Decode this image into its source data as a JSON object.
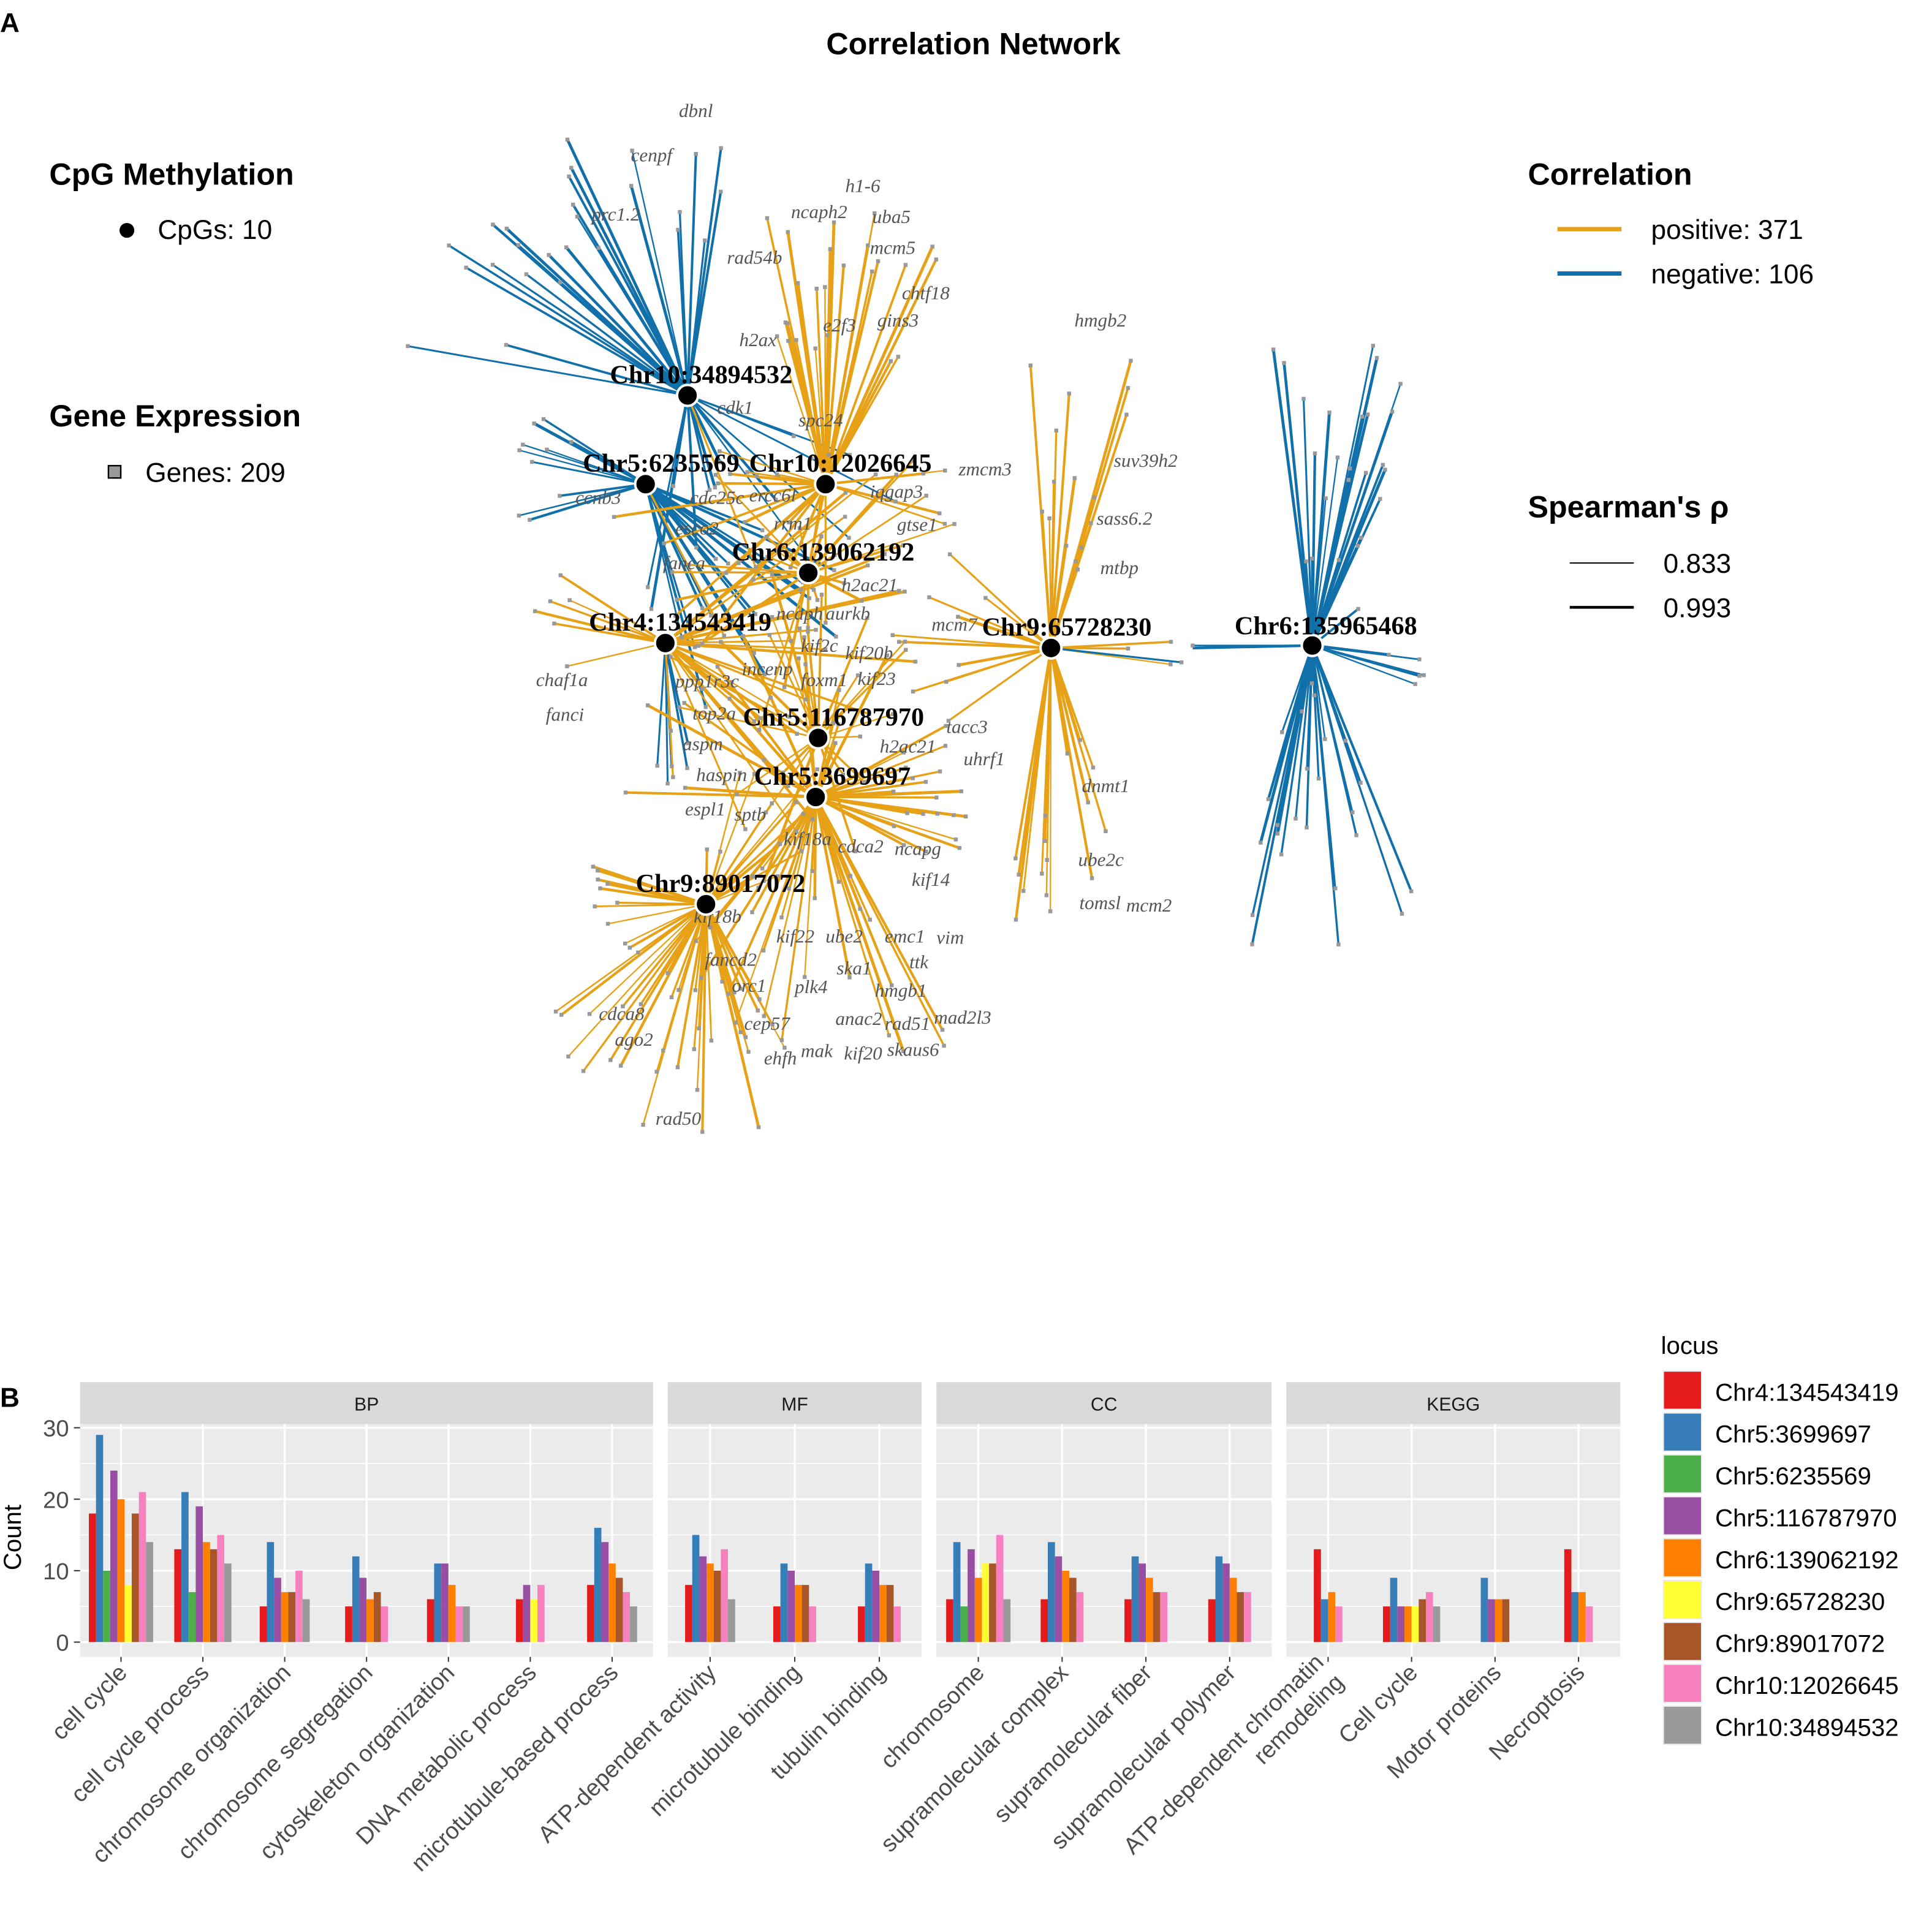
{
  "panel_a": {
    "panel_label": "A",
    "title": "Correlation Network",
    "legend_cpg": {
      "title": "CpG Methylation",
      "item": "CpGs: 10"
    },
    "legend_gene": {
      "title": "Gene Expression",
      "item": "Genes: 209"
    },
    "legend_correlation": {
      "title": "Correlation",
      "positive": "positive: 371",
      "negative": "negative: 106"
    },
    "legend_spearman": {
      "title": "Spearman's ρ",
      "low": "0.833",
      "high": "0.993"
    },
    "colors": {
      "positive": "#E6A117",
      "negative": "#1170AA",
      "cpg_node": "#000000",
      "gene_node": "#999999"
    },
    "cpg_nodes": [
      "Chr10:34894532",
      "Chr5:6235569",
      "Chr10:12026645",
      "Chr6:139062192",
      "Chr4:134543419",
      "Chr5:116787970",
      "Chr5:3699697",
      "Chr9:89017072",
      "Chr9:65728230",
      "Chr6:135965468"
    ],
    "gene_labels": [
      "dbnl",
      "cenpf",
      "prc1.2",
      "ncaph2",
      "h1-6",
      "uba5",
      "mcm5",
      "rad54b",
      "chtf18",
      "e2f3",
      "gins3",
      "h2ax",
      "cdk1",
      "spc24",
      "ercc6l",
      "iqgap3",
      "zmcm3",
      "ccnb3",
      "cdc25c",
      "esco2",
      "rrm1",
      "gtse1",
      "fanca",
      "h2ac21",
      "ncaph",
      "aurkb",
      "mcm7",
      "kif20b",
      "incenp",
      "foxm1",
      "ppp1r3c",
      "top2a",
      "kif2c",
      "kif23",
      "chaf1a",
      "fanci",
      "aspm",
      "haspin",
      "tacc3",
      "uhrf1",
      "h2ac21",
      "espl1",
      "sptb",
      "kif18a",
      "cdca2",
      "ncapg",
      "kif14",
      "kif18b",
      "kif22",
      "ube2",
      "emc1",
      "vim",
      "fancd2",
      "orc1",
      "ska1",
      "ttk",
      "hmgb1",
      "plk4",
      "rad51",
      "mad2l3",
      "anac2",
      "cdca8",
      "ago2",
      "cep57",
      "ehfh",
      "mak",
      "kif20",
      "skaus6",
      "rad50",
      "hmgb2",
      "suv39h2",
      "sass6.2",
      "mtbp",
      "dnmt1",
      "ube2c",
      "tomsl",
      "mcm2"
    ]
  },
  "panel_b": {
    "panel_label": "B"
  },
  "chart_data": {
    "type": "bar",
    "ylabel": "Count",
    "xlabel": "",
    "ylim": [
      0,
      32
    ],
    "yticks": [
      0,
      10,
      20,
      30
    ],
    "grid": true,
    "legend_title": "locus",
    "legend_position": "right",
    "series_names": [
      "Chr4:134543419",
      "Chr5:3699697",
      "Chr5:6235569",
      "Chr5:116787970",
      "Chr6:139062192",
      "Chr9:65728230",
      "Chr9:89017072",
      "Chr10:12026645",
      "Chr10:34894532"
    ],
    "series_colors": [
      "#E41A1C",
      "#377EB8",
      "#4DAF4A",
      "#984EA3",
      "#FF7F00",
      "#FFFF33",
      "#A65628",
      "#F781BF",
      "#999999"
    ],
    "facets": [
      {
        "name": "BP",
        "categories": [
          {
            "label": "cell cycle",
            "values": [
              18,
              29,
              10,
              24,
              20,
              8,
              18,
              21,
              14
            ]
          },
          {
            "label": "cell cycle process",
            "values": [
              13,
              21,
              7,
              19,
              14,
              null,
              13,
              15,
              11
            ]
          },
          {
            "label": "chromosome organization",
            "values": [
              5,
              14,
              null,
              9,
              7,
              null,
              7,
              10,
              6
            ]
          },
          {
            "label": "chromosome segregation",
            "values": [
              5,
              12,
              null,
              9,
              6,
              null,
              7,
              5,
              null
            ]
          },
          {
            "label": "cytoskeleton organization",
            "values": [
              6,
              11,
              null,
              11,
              8,
              null,
              null,
              5,
              5
            ]
          },
          {
            "label": "DNA metabolic process",
            "values": [
              6,
              null,
              null,
              8,
              null,
              6,
              null,
              8,
              null
            ]
          },
          {
            "label": "microtubule-based process",
            "values": [
              8,
              16,
              null,
              14,
              11,
              null,
              9,
              7,
              5
            ]
          }
        ]
      },
      {
        "name": "MF",
        "categories": [
          {
            "label": "ATP-dependent activity",
            "values": [
              8,
              15,
              null,
              12,
              11,
              null,
              10,
              13,
              6
            ]
          },
          {
            "label": "microtubule binding",
            "values": [
              5,
              11,
              null,
              10,
              8,
              null,
              8,
              5,
              null
            ]
          },
          {
            "label": "tubulin binding",
            "values": [
              5,
              11,
              null,
              10,
              8,
              null,
              8,
              5,
              null
            ]
          }
        ]
      },
      {
        "name": "CC",
        "categories": [
          {
            "label": "chromosome",
            "values": [
              6,
              14,
              5,
              13,
              9,
              11,
              11,
              15,
              6
            ]
          },
          {
            "label": "supramolecular complex",
            "values": [
              6,
              14,
              null,
              12,
              10,
              null,
              9,
              7,
              null
            ]
          },
          {
            "label": "supramolecular fiber",
            "values": [
              6,
              12,
              null,
              11,
              9,
              null,
              7,
              7,
              null
            ]
          },
          {
            "label": "supramolecular polymer",
            "values": [
              6,
              12,
              null,
              11,
              9,
              null,
              7,
              7,
              null
            ]
          }
        ]
      },
      {
        "name": "KEGG",
        "categories": [
          {
            "label": "ATP-dependent chromatin remodeling",
            "values": [
              13,
              6,
              null,
              null,
              7,
              null,
              null,
              5,
              null
            ]
          },
          {
            "label": "Cell cycle",
            "values": [
              5,
              9,
              null,
              5,
              5,
              5,
              6,
              7,
              5
            ]
          },
          {
            "label": "Motor proteins",
            "values": [
              null,
              9,
              null,
              6,
              6,
              null,
              6,
              null,
              null
            ]
          },
          {
            "label": "Necroptosis",
            "values": [
              13,
              7,
              null,
              null,
              7,
              null,
              null,
              5,
              null
            ]
          }
        ]
      }
    ]
  }
}
